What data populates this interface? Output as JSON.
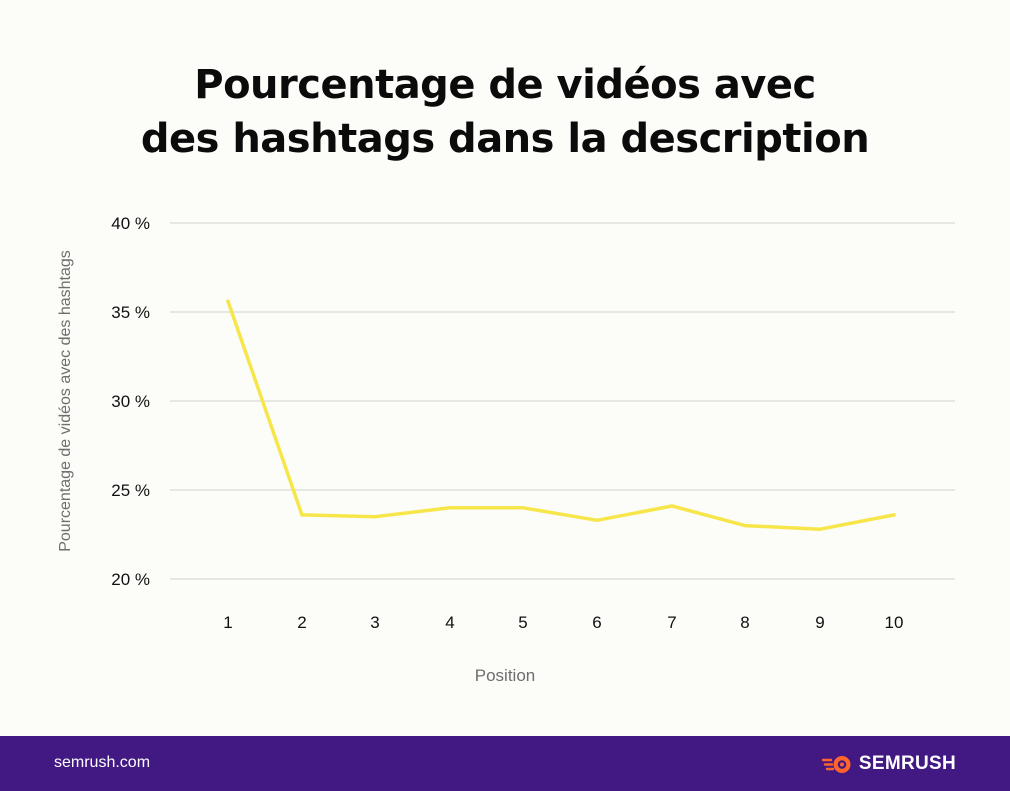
{
  "title": {
    "line1": "Pourcentage de vidéos avec",
    "line2": "des hashtags dans la description"
  },
  "chart_data": {
    "type": "line",
    "title": "Pourcentage de vidéos avec des hashtags dans la description",
    "xlabel": "Position",
    "ylabel": "Pourcentage de vidéos avec des hashtags",
    "categories": [
      "1",
      "2",
      "3",
      "4",
      "5",
      "6",
      "7",
      "8",
      "9",
      "10"
    ],
    "series": [
      {
        "values": [
          35.6,
          23.6,
          23.5,
          24.0,
          24.0,
          23.3,
          24.1,
          23.0,
          22.8,
          23.6
        ],
        "color": "#f6e64a"
      }
    ],
    "ylim": [
      20,
      40
    ],
    "yticks": [
      20,
      25,
      30,
      35,
      40
    ],
    "ytick_labels": [
      "20 %",
      "25 %",
      "30 %",
      "35 %",
      "40 %"
    ],
    "grid": true,
    "legend": "none"
  },
  "footer": {
    "url": "semrush.com",
    "brand": "SEMRUSH",
    "brand_icon": "semrush-fireball-icon",
    "background": "#421983",
    "accent": "#ff642d"
  }
}
